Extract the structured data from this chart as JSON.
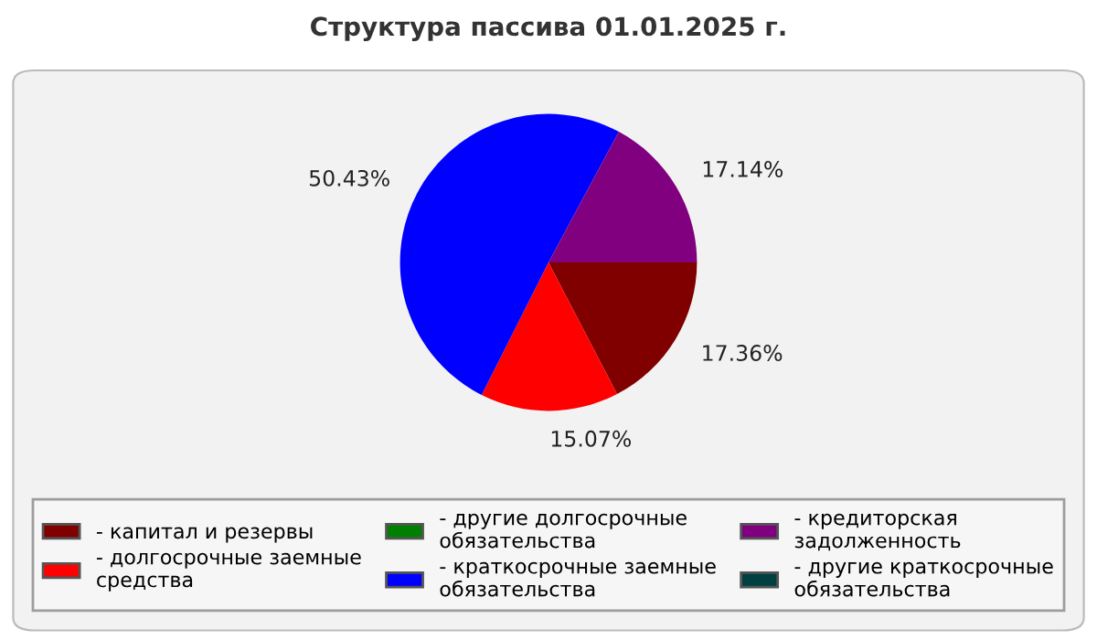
{
  "chart_data": {
    "type": "pie",
    "title": "Структура пассива 01.01.2025 г.",
    "categories": [
      "- капитал и резервы",
      "- долгосрочные заемные средства",
      "- другие долгосрочные обязательства",
      "- краткосрочные заемные обязательства",
      "- кредиторская задолженность",
      "- другие краткосрочные обязательства"
    ],
    "values": [
      17.36,
      15.07,
      0,
      50.43,
      17.14,
      0
    ],
    "value_labels": [
      "17.36%",
      "15.07%",
      null,
      "50.43%",
      "17.14%",
      null
    ],
    "colors": [
      "#800000",
      "#ff0000",
      "#008000",
      "#0000ff",
      "#800080",
      "#004040"
    ],
    "legend": "bottom"
  }
}
